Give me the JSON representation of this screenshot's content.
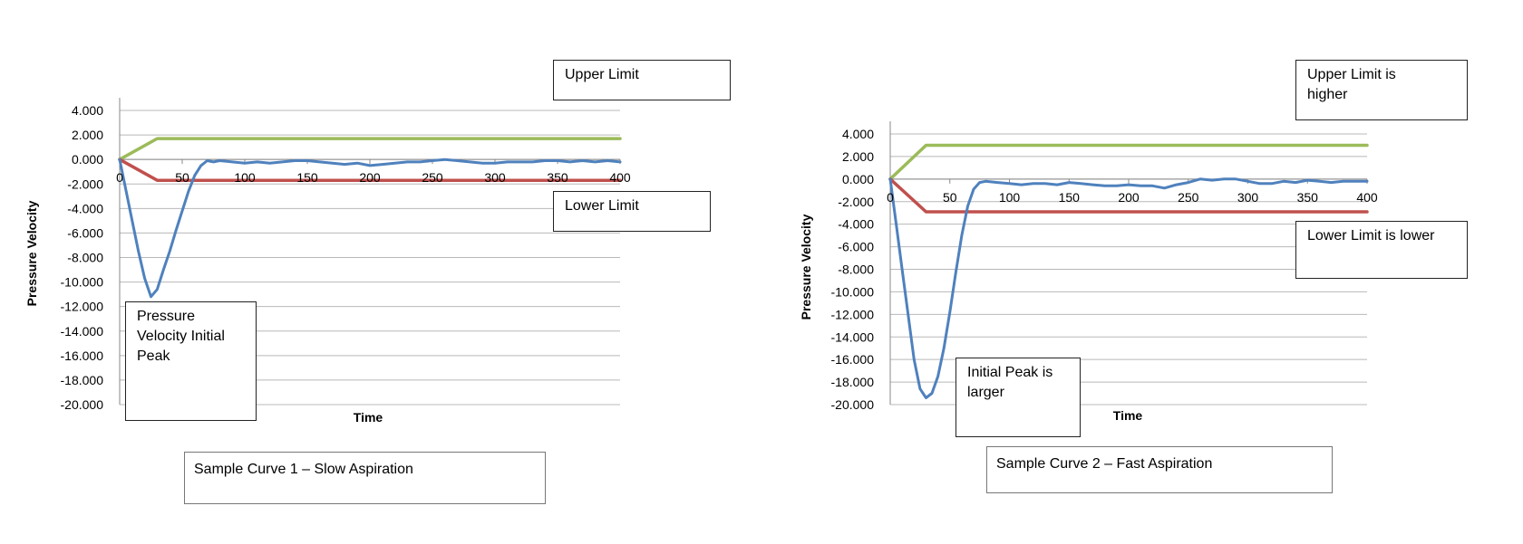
{
  "chart_data": [
    {
      "type": "line",
      "title": "",
      "xlabel": "Time",
      "ylabel": "Pressure Velocity",
      "xlim": [
        0,
        400
      ],
      "ylim": [
        -20,
        4
      ],
      "x_ticks": [
        "0",
        "50",
        "100",
        "150",
        "200",
        "250",
        "300",
        "350",
        "400"
      ],
      "y_ticks": [
        "4.000",
        "2.000",
        "0.000",
        "-2.000",
        "-4.000",
        "-6.000",
        "-8.000",
        "-10.000",
        "-12.000",
        "-14.000",
        "-16.000",
        "-18.000",
        "-20.000"
      ],
      "grid": true,
      "series": [
        {
          "color": "#9bbb59",
          "x": [
            0,
            30,
            400
          ],
          "y": [
            0,
            1.7,
            1.7
          ]
        },
        {
          "color": "#c0504d",
          "x": [
            0,
            30,
            400
          ],
          "y": [
            0,
            -1.7,
            -1.7
          ]
        },
        {
          "color": "#4f81bd",
          "x": [
            0,
            5,
            10,
            15,
            20,
            25,
            30,
            35,
            40,
            45,
            50,
            55,
            60,
            65,
            70,
            75,
            80,
            90,
            100,
            110,
            120,
            130,
            140,
            150,
            160,
            170,
            180,
            190,
            200,
            210,
            220,
            230,
            240,
            250,
            260,
            270,
            280,
            290,
            300,
            310,
            320,
            330,
            340,
            350,
            360,
            370,
            380,
            390,
            400
          ],
          "y": [
            0,
            -2.5,
            -5,
            -7.5,
            -9.7,
            -11.2,
            -10.6,
            -9,
            -7.5,
            -5.8,
            -4.2,
            -2.6,
            -1.3,
            -0.5,
            -0.1,
            -0.2,
            -0.1,
            -0.2,
            -0.3,
            -0.2,
            -0.3,
            -0.2,
            -0.1,
            -0.1,
            -0.2,
            -0.3,
            -0.4,
            -0.3,
            -0.5,
            -0.4,
            -0.3,
            -0.2,
            -0.2,
            -0.1,
            0,
            -0.1,
            -0.2,
            -0.3,
            -0.3,
            -0.2,
            -0.2,
            -0.2,
            -0.1,
            -0.1,
            -0.2,
            -0.1,
            -0.2,
            -0.1,
            -0.2
          ]
        }
      ],
      "annotations": {
        "upper": "Upper Limit",
        "lower": "Lower Limit",
        "peak": "Pressure\nVelocity Initial\nPeak",
        "caption": "Sample Curve 1 – Slow Aspiration"
      }
    },
    {
      "type": "line",
      "title": "",
      "xlabel": "Time",
      "ylabel": "Pressure Velocity",
      "xlim": [
        0,
        400
      ],
      "ylim": [
        -20,
        4
      ],
      "x_ticks": [
        "0",
        "50",
        "100",
        "150",
        "200",
        "250",
        "300",
        "350",
        "400"
      ],
      "y_ticks": [
        "4.000",
        "2.000",
        "0.000",
        "-2.000",
        "-4.000",
        "-6.000",
        "-8.000",
        "-10.000",
        "-12.000",
        "-14.000",
        "-16.000",
        "-18.000",
        "-20.000"
      ],
      "grid": true,
      "series": [
        {
          "color": "#9bbb59",
          "x": [
            0,
            30,
            400
          ],
          "y": [
            0,
            3,
            3
          ]
        },
        {
          "color": "#c0504d",
          "x": [
            0,
            30,
            400
          ],
          "y": [
            0,
            -2.9,
            -2.9
          ]
        },
        {
          "color": "#4f81bd",
          "x": [
            0,
            5,
            10,
            15,
            20,
            25,
            30,
            35,
            40,
            45,
            50,
            55,
            60,
            65,
            70,
            75,
            80,
            90,
            100,
            110,
            120,
            130,
            140,
            150,
            160,
            170,
            180,
            190,
            200,
            210,
            220,
            230,
            240,
            250,
            260,
            270,
            280,
            290,
            300,
            310,
            320,
            330,
            340,
            350,
            360,
            370,
            380,
            390,
            400
          ],
          "y": [
            0,
            -4,
            -8,
            -12,
            -16,
            -18.6,
            -19.4,
            -19,
            -17.5,
            -15,
            -11.8,
            -8.3,
            -5,
            -2.4,
            -0.9,
            -0.3,
            -0.2,
            -0.3,
            -0.4,
            -0.5,
            -0.4,
            -0.4,
            -0.5,
            -0.3,
            -0.4,
            -0.5,
            -0.6,
            -0.6,
            -0.5,
            -0.6,
            -0.6,
            -0.8,
            -0.5,
            -0.3,
            0,
            -0.1,
            0,
            0,
            -0.2,
            -0.4,
            -0.4,
            -0.2,
            -0.3,
            -0.1,
            -0.2,
            -0.3,
            -0.2,
            -0.2,
            -0.2
          ]
        }
      ],
      "annotations": {
        "upper": "Upper Limit is\nhigher",
        "lower": "Lower Limit is lower",
        "peak": "Initial Peak is\nlarger",
        "caption": "Sample Curve 2 – Fast Aspiration"
      }
    }
  ]
}
